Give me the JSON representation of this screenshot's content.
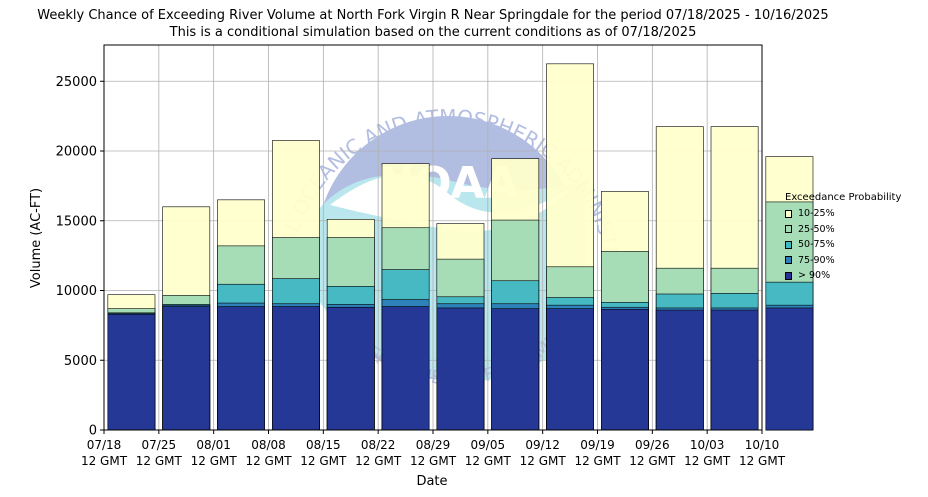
{
  "chart_data": {
    "type": "bar",
    "title": "Weekly Chance of Exceeding River Volume at North Fork Virgin R Near Springdale for the period 07/18/2025 - 10/16/2025",
    "subtitle": "This is a conditional simulation based on the current conditions as of 07/18/2025",
    "xlabel": "Date",
    "ylabel": "Volume (AC-FT)",
    "ylim": [
      0,
      27600
    ],
    "yticks": [
      0,
      5000,
      10000,
      15000,
      20000,
      25000
    ],
    "x_ticks": [
      [
        "07/18",
        "12 GMT"
      ],
      [
        "07/25",
        "12 GMT"
      ],
      [
        "08/01",
        "12 GMT"
      ],
      [
        "08/08",
        "12 GMT"
      ],
      [
        "08/15",
        "12 GMT"
      ],
      [
        "08/22",
        "12 GMT"
      ],
      [
        "08/29",
        "12 GMT"
      ],
      [
        "09/05",
        "12 GMT"
      ],
      [
        "09/12",
        "12 GMT"
      ],
      [
        "09/19",
        "12 GMT"
      ],
      [
        "09/26",
        "12 GMT"
      ],
      [
        "10/03",
        "12 GMT"
      ],
      [
        "10/10",
        "12 GMT"
      ]
    ],
    "grid": true,
    "legend_title": "Exceedance Probability",
    "legend_position": "right",
    "series": [
      {
        "name": "> 90%",
        "color": "#253494",
        "values": [
          8300,
          8850,
          8850,
          8850,
          8800,
          8850,
          8750,
          8700,
          8700,
          8650,
          8600,
          8600,
          8750
        ]
      },
      {
        "name": "75-90%",
        "color": "#2c7fb8",
        "values": [
          8350,
          8950,
          9100,
          9050,
          9000,
          9350,
          9050,
          9050,
          8950,
          8800,
          8750,
          8750,
          8950
        ]
      },
      {
        "name": "50-75%",
        "color": "#41b6c4",
        "values": [
          8400,
          9000,
          10450,
          10850,
          10300,
          11500,
          9550,
          10700,
          9500,
          9150,
          9750,
          9800,
          10600
        ]
      },
      {
        "name": "25-50%",
        "color": "#a1dab4",
        "values": [
          8700,
          9650,
          13200,
          13800,
          13800,
          14500,
          12250,
          15050,
          11700,
          12800,
          11600,
          11600,
          16350
        ]
      },
      {
        "name": "10-25%",
        "color": "#ffffcc",
        "values": [
          9700,
          16000,
          16500,
          20750,
          15100,
          19100,
          14800,
          19450,
          26250,
          17100,
          21750,
          21750,
          19600
        ]
      }
    ]
  },
  "watermark": {
    "text_top": "NATIONAL OCEANIC AND ATMOSPHERIC ADMINISTRATION",
    "text_bottom": "U.S. DEPARTMENT OF COMMERCE",
    "logo": "NOAA"
  }
}
